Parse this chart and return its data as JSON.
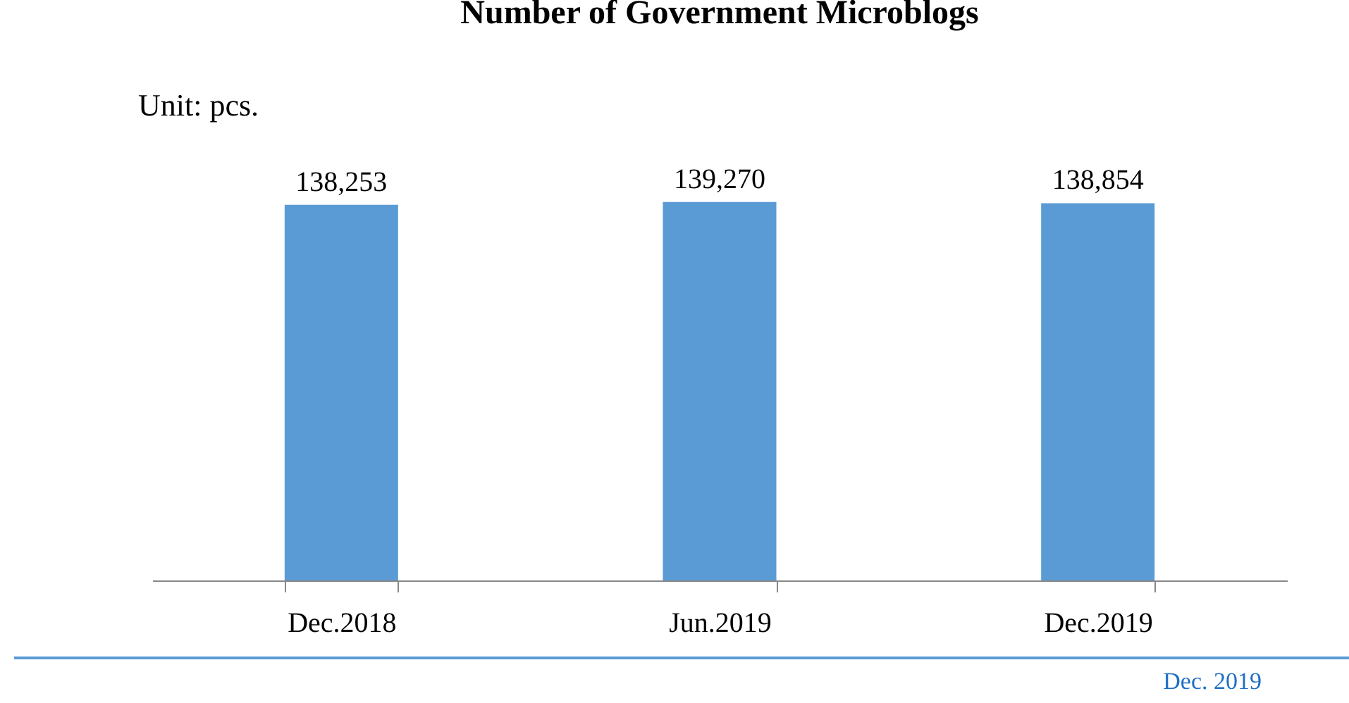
{
  "chart_data": {
    "type": "bar",
    "title": "Number of Government Microblogs",
    "ylabel": "Unit: pcs.",
    "categories": [
      "Dec.2018",
      "Jun.2019",
      "Dec.2019"
    ],
    "values": [
      138253,
      139270,
      138854
    ],
    "value_labels": [
      "138,253",
      "139,270",
      "138,854"
    ],
    "color": "#5b9bd5",
    "annotations": [
      "Dec. 2019"
    ]
  }
}
